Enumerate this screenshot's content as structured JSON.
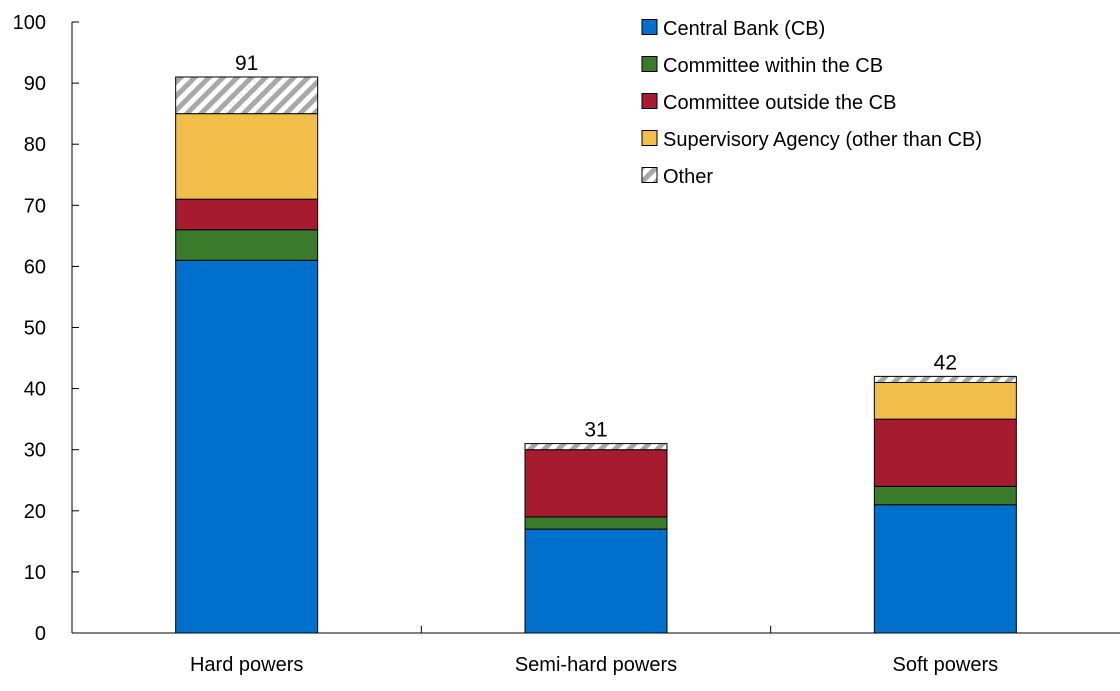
{
  "chart_data": {
    "type": "bar",
    "stacked": true,
    "categories": [
      "Hard powers",
      "Semi-hard powers",
      "Soft powers"
    ],
    "series": [
      {
        "name": "Central Bank (CB)",
        "values": [
          61,
          17,
          21
        ],
        "color": "#0070CD"
      },
      {
        "name": "Committee within the CB",
        "values": [
          5,
          2,
          3
        ],
        "color": "#3A7A2B"
      },
      {
        "name": "Committee outside the CB",
        "values": [
          5,
          11,
          11
        ],
        "color": "#A61B2E"
      },
      {
        "name": "Supervisory Agency (other than CB)",
        "values": [
          14,
          0,
          6
        ],
        "color": "#F2BE4A",
        "pattern": "solid"
      },
      {
        "name": "Other",
        "values": [
          6,
          1,
          1
        ],
        "color": "#A8A8A8",
        "pattern": "hatched"
      }
    ],
    "totals": [
      "91",
      "31",
      "42"
    ],
    "ylim": [
      0,
      100
    ],
    "yticks": [
      "0",
      "10",
      "20",
      "30",
      "40",
      "50",
      "60",
      "70",
      "80",
      "90",
      "100"
    ],
    "title": "",
    "xlabel": "",
    "ylabel": "",
    "grid": false,
    "legend_position": "top-right"
  }
}
